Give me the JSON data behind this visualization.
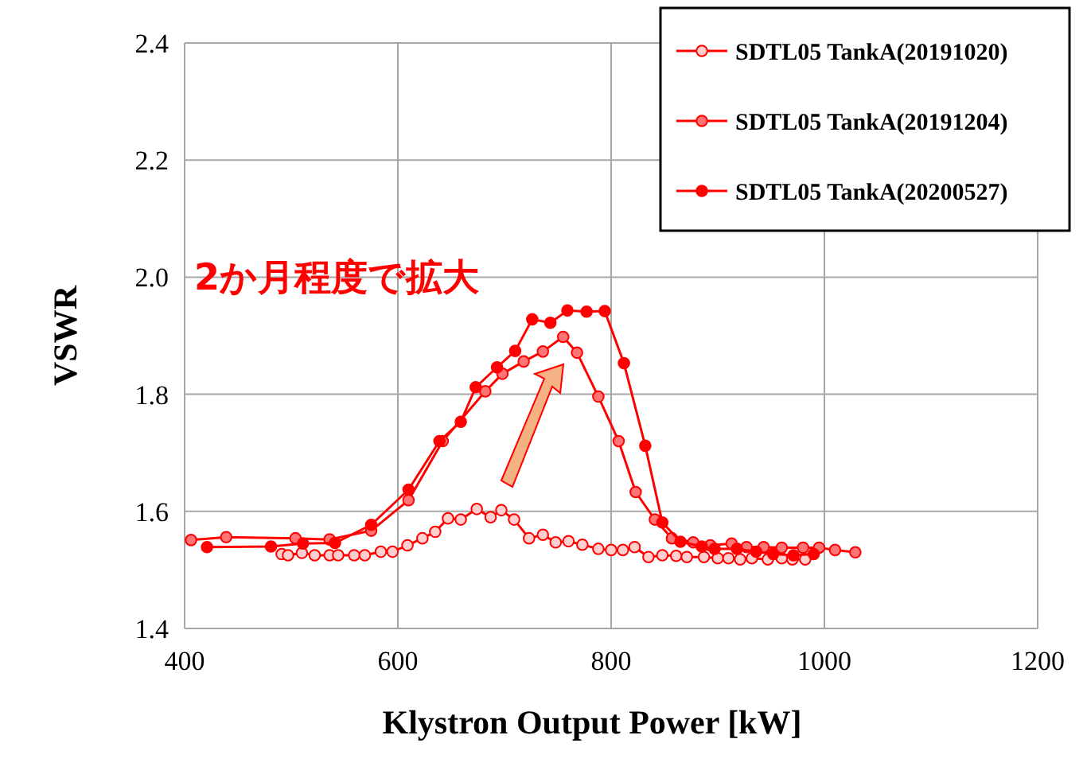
{
  "chart_data": {
    "type": "line",
    "xlabel": "Klystron Output Power [kW]",
    "ylabel": "VSWR",
    "annotations": [
      "2か月程度で拡大"
    ],
    "xlim": [
      400,
      1200
    ],
    "xticks": [
      400,
      600,
      800,
      1000,
      1200
    ],
    "ylim": [
      1.4,
      2.4
    ],
    "yticks": [
      {
        "value": 1.4,
        "label": "1.4"
      },
      {
        "value": 1.6,
        "label": "1.6"
      },
      {
        "value": 1.8,
        "label": "1.8"
      },
      {
        "value": 2.0,
        "label": "2.0"
      },
      {
        "value": 2.2,
        "label": "2.2"
      },
      {
        "value": 2.4,
        "label": "2.4"
      }
    ],
    "grid": true,
    "legend": "top right",
    "marker": "circle",
    "line_style": "solid",
    "series": [
      {
        "name": "SDTL05 TankA(20191020)",
        "color": "#ff0000",
        "x": [
          491,
          497,
          510,
          522,
          536,
          544,
          559,
          569,
          584,
          595,
          609,
          623,
          635,
          647,
          659,
          674,
          687,
          697,
          709,
          723,
          736,
          748,
          760,
          773,
          788,
          800,
          811,
          822,
          835,
          848,
          861,
          871,
          887,
          900,
          910,
          921,
          932,
          947,
          960,
          970,
          982
        ],
        "values": [
          1.527,
          1.525,
          1.529,
          1.525,
          1.525,
          1.525,
          1.525,
          1.525,
          1.531,
          1.531,
          1.542,
          1.554,
          1.565,
          1.588,
          1.586,
          1.604,
          1.59,
          1.602,
          1.586,
          1.554,
          1.56,
          1.547,
          1.549,
          1.543,
          1.536,
          1.534,
          1.534,
          1.539,
          1.522,
          1.525,
          1.524,
          1.522,
          1.522,
          1.52,
          1.52,
          1.518,
          1.52,
          1.518,
          1.52,
          1.518,
          1.518
        ]
      },
      {
        "name": "SDTL05 TankA(20191204)",
        "color": "#ff0000",
        "x": [
          406,
          439,
          504,
          536,
          575,
          610,
          642,
          682,
          698,
          718,
          736,
          755,
          768,
          788,
          807,
          823,
          841,
          857,
          877,
          893,
          913,
          927,
          943,
          960,
          980,
          995,
          1010,
          1029
        ],
        "values": [
          1.551,
          1.556,
          1.554,
          1.552,
          1.567,
          1.619,
          1.72,
          1.805,
          1.835,
          1.856,
          1.873,
          1.898,
          1.871,
          1.796,
          1.72,
          1.633,
          1.586,
          1.554,
          1.547,
          1.542,
          1.545,
          1.539,
          1.539,
          1.538,
          1.538,
          1.538,
          1.534,
          1.53
        ]
      },
      {
        "name": "SDTL05 TankA(20200527)",
        "color": "#ff0000",
        "x": [
          421,
          481,
          511,
          541,
          575,
          610,
          639,
          659,
          673,
          693,
          710,
          726,
          743,
          759,
          777,
          794,
          812,
          832,
          848,
          865,
          885,
          897,
          918,
          936,
          952,
          971,
          990
        ],
        "values": [
          1.539,
          1.54,
          1.545,
          1.546,
          1.577,
          1.637,
          1.72,
          1.753,
          1.812,
          1.846,
          1.874,
          1.928,
          1.922,
          1.943,
          1.941,
          1.942,
          1.853,
          1.712,
          1.581,
          1.548,
          1.54,
          1.536,
          1.536,
          1.531,
          1.527,
          1.525,
          1.527
        ]
      }
    ]
  }
}
